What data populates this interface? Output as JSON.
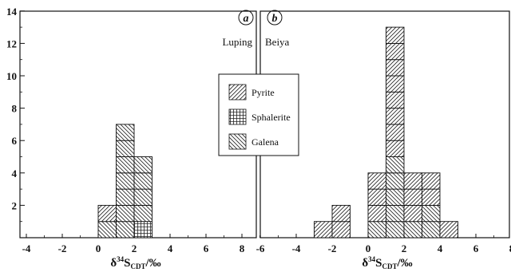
{
  "chart_data": [
    {
      "type": "bar",
      "panel_letter": "a",
      "panel_label": "Luping",
      "xlabel": "δ34SCDT/‰",
      "xlim": [
        -4,
        9
      ],
      "ylim": [
        0,
        14
      ],
      "x_ticks": [
        -4,
        -2,
        0,
        2,
        4,
        6,
        8
      ],
      "y_ticks": [
        2,
        4,
        6,
        8,
        10,
        12,
        14
      ],
      "bin_width": 1,
      "bins": [
        0,
        1,
        2
      ],
      "series": [
        {
          "name": "Sphalerite",
          "pattern": "grid",
          "values": [
            0,
            0,
            1
          ]
        },
        {
          "name": "Galena",
          "pattern": "backslash",
          "values": [
            1,
            7,
            4
          ]
        },
        {
          "name": "Pyrite",
          "pattern": "slash",
          "values": [
            1,
            0,
            0
          ]
        }
      ]
    },
    {
      "type": "bar",
      "panel_letter": "b",
      "panel_label": "Beiya",
      "xlabel": "δ34SCDT/‰",
      "xlim": [
        -6,
        8
      ],
      "x_ticks": [
        -6,
        -4,
        -2,
        0,
        2,
        4,
        6,
        8
      ],
      "ylim": [
        0,
        14
      ],
      "bin_width": 1,
      "bins": [
        -3,
        -2,
        0,
        1,
        2,
        3,
        4
      ],
      "series": [
        {
          "name": "Galena",
          "pattern": "backslash",
          "values": [
            0,
            0,
            1,
            5,
            1,
            2,
            0
          ]
        },
        {
          "name": "Pyrite",
          "pattern": "slash",
          "values": [
            1,
            2,
            3,
            8,
            3,
            2,
            1
          ]
        }
      ]
    }
  ],
  "legend": {
    "items": [
      {
        "name": "Pyrite",
        "pattern": "slash"
      },
      {
        "name": "Sphalerite",
        "pattern": "grid"
      },
      {
        "name": "Galena",
        "pattern": "backslash"
      }
    ]
  },
  "axis_title": {
    "delta": "δ",
    "sup": "34",
    "s": "S",
    "sub": "CDT",
    "unit": "/‰"
  }
}
